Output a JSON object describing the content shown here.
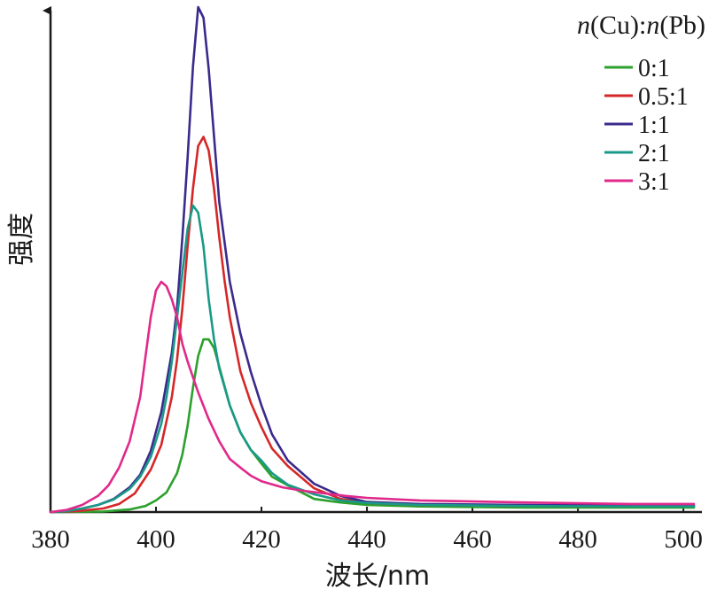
{
  "chart_data": {
    "type": "line",
    "xlabel": "波长/nm",
    "ylabel": "强度",
    "xlim": [
      380,
      502
    ],
    "ylim": [
      0,
      100
    ],
    "xticks": [
      380,
      400,
      420,
      440,
      460,
      480,
      500
    ],
    "grid": false,
    "legend": {
      "placement": "top-right",
      "title_parts": [
        {
          "text": "n",
          "italic": true
        },
        {
          "text": "(Cu):",
          "italic": false
        },
        {
          "text": "n",
          "italic": true
        },
        {
          "text": "(Pb)",
          "italic": false
        }
      ]
    },
    "series": [
      {
        "name": "0:1",
        "color": "#2ca02c",
        "points": [
          [
            380,
            0
          ],
          [
            390,
            0.1
          ],
          [
            395,
            0.5
          ],
          [
            398,
            1.2
          ],
          [
            400,
            2.3
          ],
          [
            402,
            3.9
          ],
          [
            404,
            7.7
          ],
          [
            405,
            11.4
          ],
          [
            406,
            17.1
          ],
          [
            407,
            24.6
          ],
          [
            408,
            30.9
          ],
          [
            409,
            34.2
          ],
          [
            410,
            34.2
          ],
          [
            411,
            32.5
          ],
          [
            412,
            28.8
          ],
          [
            414,
            21.1
          ],
          [
            416,
            15.8
          ],
          [
            418,
            12.3
          ],
          [
            420,
            9.6
          ],
          [
            422,
            7.0
          ],
          [
            425,
            5.3
          ],
          [
            430,
            2.6
          ],
          [
            435,
            1.9
          ],
          [
            440,
            1.4
          ],
          [
            450,
            1.1
          ],
          [
            470,
            0.9
          ],
          [
            490,
            0.9
          ],
          [
            502,
            0.9
          ]
        ]
      },
      {
        "name": "0.5:1",
        "color": "#d62728",
        "points": [
          [
            380,
            0
          ],
          [
            385,
            0.2
          ],
          [
            390,
            0.7
          ],
          [
            393,
            1.6
          ],
          [
            396,
            3.7
          ],
          [
            399,
            8.4
          ],
          [
            401,
            13.3
          ],
          [
            403,
            22.8
          ],
          [
            404,
            30.2
          ],
          [
            405,
            40.4
          ],
          [
            406,
            52.6
          ],
          [
            407,
            64.0
          ],
          [
            408,
            72.5
          ],
          [
            409,
            74.3
          ],
          [
            410,
            71.6
          ],
          [
            411,
            64.0
          ],
          [
            412,
            54.4
          ],
          [
            413,
            45.8
          ],
          [
            414,
            38.6
          ],
          [
            416,
            27.9
          ],
          [
            418,
            21.6
          ],
          [
            420,
            16.8
          ],
          [
            422,
            12.6
          ],
          [
            425,
            9.1
          ],
          [
            430,
            4.7
          ],
          [
            435,
            2.6
          ],
          [
            440,
            1.8
          ],
          [
            450,
            1.4
          ],
          [
            470,
            1.2
          ],
          [
            490,
            1.1
          ],
          [
            502,
            1.1
          ]
        ]
      },
      {
        "name": "1:1",
        "color": "#3b2a8c",
        "points": [
          [
            380,
            0
          ],
          [
            383,
            0.2
          ],
          [
            386,
            0.7
          ],
          [
            389,
            1.4
          ],
          [
            392,
            2.6
          ],
          [
            395,
            4.9
          ],
          [
            397,
            7.4
          ],
          [
            399,
            12.1
          ],
          [
            401,
            19.8
          ],
          [
            403,
            31.6
          ],
          [
            404,
            40.5
          ],
          [
            405,
            54.4
          ],
          [
            406,
            70.2
          ],
          [
            407,
            88.1
          ],
          [
            408,
            100
          ],
          [
            409,
            97.9
          ],
          [
            410,
            87.7
          ],
          [
            411,
            74.4
          ],
          [
            412,
            61.4
          ],
          [
            414,
            45.6
          ],
          [
            416,
            35.4
          ],
          [
            418,
            27.7
          ],
          [
            420,
            21.1
          ],
          [
            422,
            15.4
          ],
          [
            425,
            10.2
          ],
          [
            430,
            5.6
          ],
          [
            435,
            3.2
          ],
          [
            440,
            2.0
          ],
          [
            450,
            1.6
          ],
          [
            470,
            1.4
          ],
          [
            490,
            1.3
          ],
          [
            502,
            1.3
          ]
        ]
      },
      {
        "name": "2:1",
        "color": "#1a9988",
        "points": [
          [
            380,
            0
          ],
          [
            383,
            0.2
          ],
          [
            386,
            0.7
          ],
          [
            389,
            1.4
          ],
          [
            392,
            2.5
          ],
          [
            395,
            4.6
          ],
          [
            397,
            7.0
          ],
          [
            399,
            10.9
          ],
          [
            401,
            17.5
          ],
          [
            402,
            22.8
          ],
          [
            403,
            29.8
          ],
          [
            404,
            38.6
          ],
          [
            405,
            47.4
          ],
          [
            406,
            56.1
          ],
          [
            407,
            60.7
          ],
          [
            408,
            59.3
          ],
          [
            409,
            52.6
          ],
          [
            410,
            42.1
          ],
          [
            411,
            34.2
          ],
          [
            412,
            28.4
          ],
          [
            414,
            21.1
          ],
          [
            416,
            15.8
          ],
          [
            418,
            12.3
          ],
          [
            420,
            10.2
          ],
          [
            422,
            7.7
          ],
          [
            425,
            5.4
          ],
          [
            430,
            3.5
          ],
          [
            435,
            2.3
          ],
          [
            440,
            1.8
          ],
          [
            450,
            1.4
          ],
          [
            470,
            1.2
          ],
          [
            490,
            1.1
          ],
          [
            502,
            1.1
          ]
        ]
      },
      {
        "name": "3:1",
        "color": "#e0298a",
        "points": [
          [
            380,
            0
          ],
          [
            383,
            0.4
          ],
          [
            386,
            1.4
          ],
          [
            389,
            3.2
          ],
          [
            391,
            5.3
          ],
          [
            393,
            8.8
          ],
          [
            395,
            14.0
          ],
          [
            397,
            22.8
          ],
          [
            398,
            30.7
          ],
          [
            399,
            38.6
          ],
          [
            400,
            43.9
          ],
          [
            401,
            45.6
          ],
          [
            402,
            44.7
          ],
          [
            403,
            42.1
          ],
          [
            404,
            38.6
          ],
          [
            405,
            33.3
          ],
          [
            406,
            29.8
          ],
          [
            408,
            23.7
          ],
          [
            410,
            18.4
          ],
          [
            412,
            14.0
          ],
          [
            414,
            10.5
          ],
          [
            416,
            8.8
          ],
          [
            418,
            7.2
          ],
          [
            420,
            6.1
          ],
          [
            424,
            4.9
          ],
          [
            428,
            4.2
          ],
          [
            432,
            3.7
          ],
          [
            436,
            3.2
          ],
          [
            440,
            2.8
          ],
          [
            450,
            2.3
          ],
          [
            470,
            1.9
          ],
          [
            490,
            1.6
          ],
          [
            502,
            1.6
          ]
        ]
      }
    ]
  }
}
